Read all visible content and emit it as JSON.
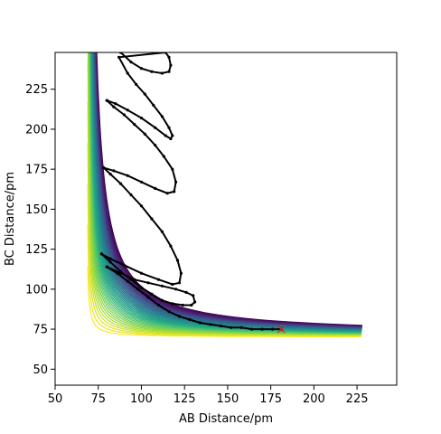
{
  "chart_data": {
    "type": "contour",
    "title": "",
    "xlabel": "AB Distance/pm",
    "ylabel": "BC Distance/pm",
    "xlim": [
      50,
      248
    ],
    "ylim": [
      40,
      248
    ],
    "x_ticks": [
      50,
      75,
      100,
      125,
      150,
      175,
      200,
      225
    ],
    "y_ticks": [
      50,
      75,
      100,
      125,
      150,
      175,
      200,
      225
    ],
    "colormap": "viridis",
    "contour_levels": 40,
    "potential_minimum_line": {
      "x": 74,
      "y": 74
    },
    "trajectory": {
      "color": "#000000",
      "marker": "dots",
      "points": [
        [
          88,
          248
        ],
        [
          94,
          242
        ],
        [
          100,
          238
        ],
        [
          106,
          236
        ],
        [
          112,
          235
        ],
        [
          116,
          236
        ],
        [
          117,
          240
        ],
        [
          116,
          245
        ],
        [
          114,
          248
        ],
        [
          87,
          245
        ],
        [
          92,
          235
        ],
        [
          97,
          228
        ],
        [
          102,
          222
        ],
        [
          107,
          215
        ],
        [
          112,
          208
        ],
        [
          116,
          201
        ],
        [
          118,
          196
        ],
        [
          117,
          194
        ],
        [
          114,
          196
        ],
        [
          108,
          201
        ],
        [
          100,
          207
        ],
        [
          92,
          212
        ],
        [
          85,
          216
        ],
        [
          80,
          218
        ],
        [
          80,
          218
        ],
        [
          84,
          214
        ],
        [
          90,
          209
        ],
        [
          96,
          203
        ],
        [
          102,
          197
        ],
        [
          108,
          190
        ],
        [
          113,
          183
        ],
        [
          118,
          175
        ],
        [
          120,
          167
        ],
        [
          119,
          161
        ],
        [
          115,
          160
        ],
        [
          108,
          163
        ],
        [
          100,
          167
        ],
        [
          92,
          171
        ],
        [
          84,
          174
        ],
        [
          78,
          176
        ],
        [
          78,
          176
        ],
        [
          82,
          172
        ],
        [
          88,
          166
        ],
        [
          94,
          159
        ],
        [
          100,
          152
        ],
        [
          106,
          144
        ],
        [
          112,
          136
        ],
        [
          117,
          127
        ],
        [
          121,
          118
        ],
        [
          123,
          110
        ],
        [
          122,
          104
        ],
        [
          118,
          103
        ],
        [
          110,
          106
        ],
        [
          100,
          110
        ],
        [
          90,
          115
        ],
        [
          82,
          119
        ],
        [
          77,
          122
        ],
        [
          77,
          122
        ],
        [
          82,
          117
        ],
        [
          88,
          111
        ],
        [
          94,
          106
        ],
        [
          100,
          101
        ],
        [
          106,
          97
        ],
        [
          112,
          93
        ],
        [
          118,
          91
        ],
        [
          124,
          90
        ],
        [
          129,
          90
        ],
        [
          131,
          92
        ],
        [
          130,
          96
        ],
        [
          126,
          98
        ],
        [
          120,
          100
        ],
        [
          112,
          102
        ],
        [
          104,
          104
        ],
        [
          96,
          106
        ],
        [
          88,
          110
        ],
        [
          80,
          114
        ],
        [
          80,
          114
        ],
        [
          86,
          110
        ],
        [
          92,
          105
        ],
        [
          98,
          100
        ],
        [
          104,
          95
        ],
        [
          110,
          90
        ],
        [
          116,
          86
        ],
        [
          122,
          83
        ],
        [
          128,
          81
        ],
        [
          134,
          79
        ],
        [
          140,
          78
        ],
        [
          146,
          77
        ],
        [
          152,
          76
        ],
        [
          158,
          76
        ],
        [
          164,
          75
        ],
        [
          170,
          75
        ],
        [
          176,
          75
        ],
        [
          181,
          75
        ]
      ]
    },
    "end_marker": {
      "x": 181,
      "y": 75,
      "symbol": "x",
      "color": "#d62728"
    }
  }
}
